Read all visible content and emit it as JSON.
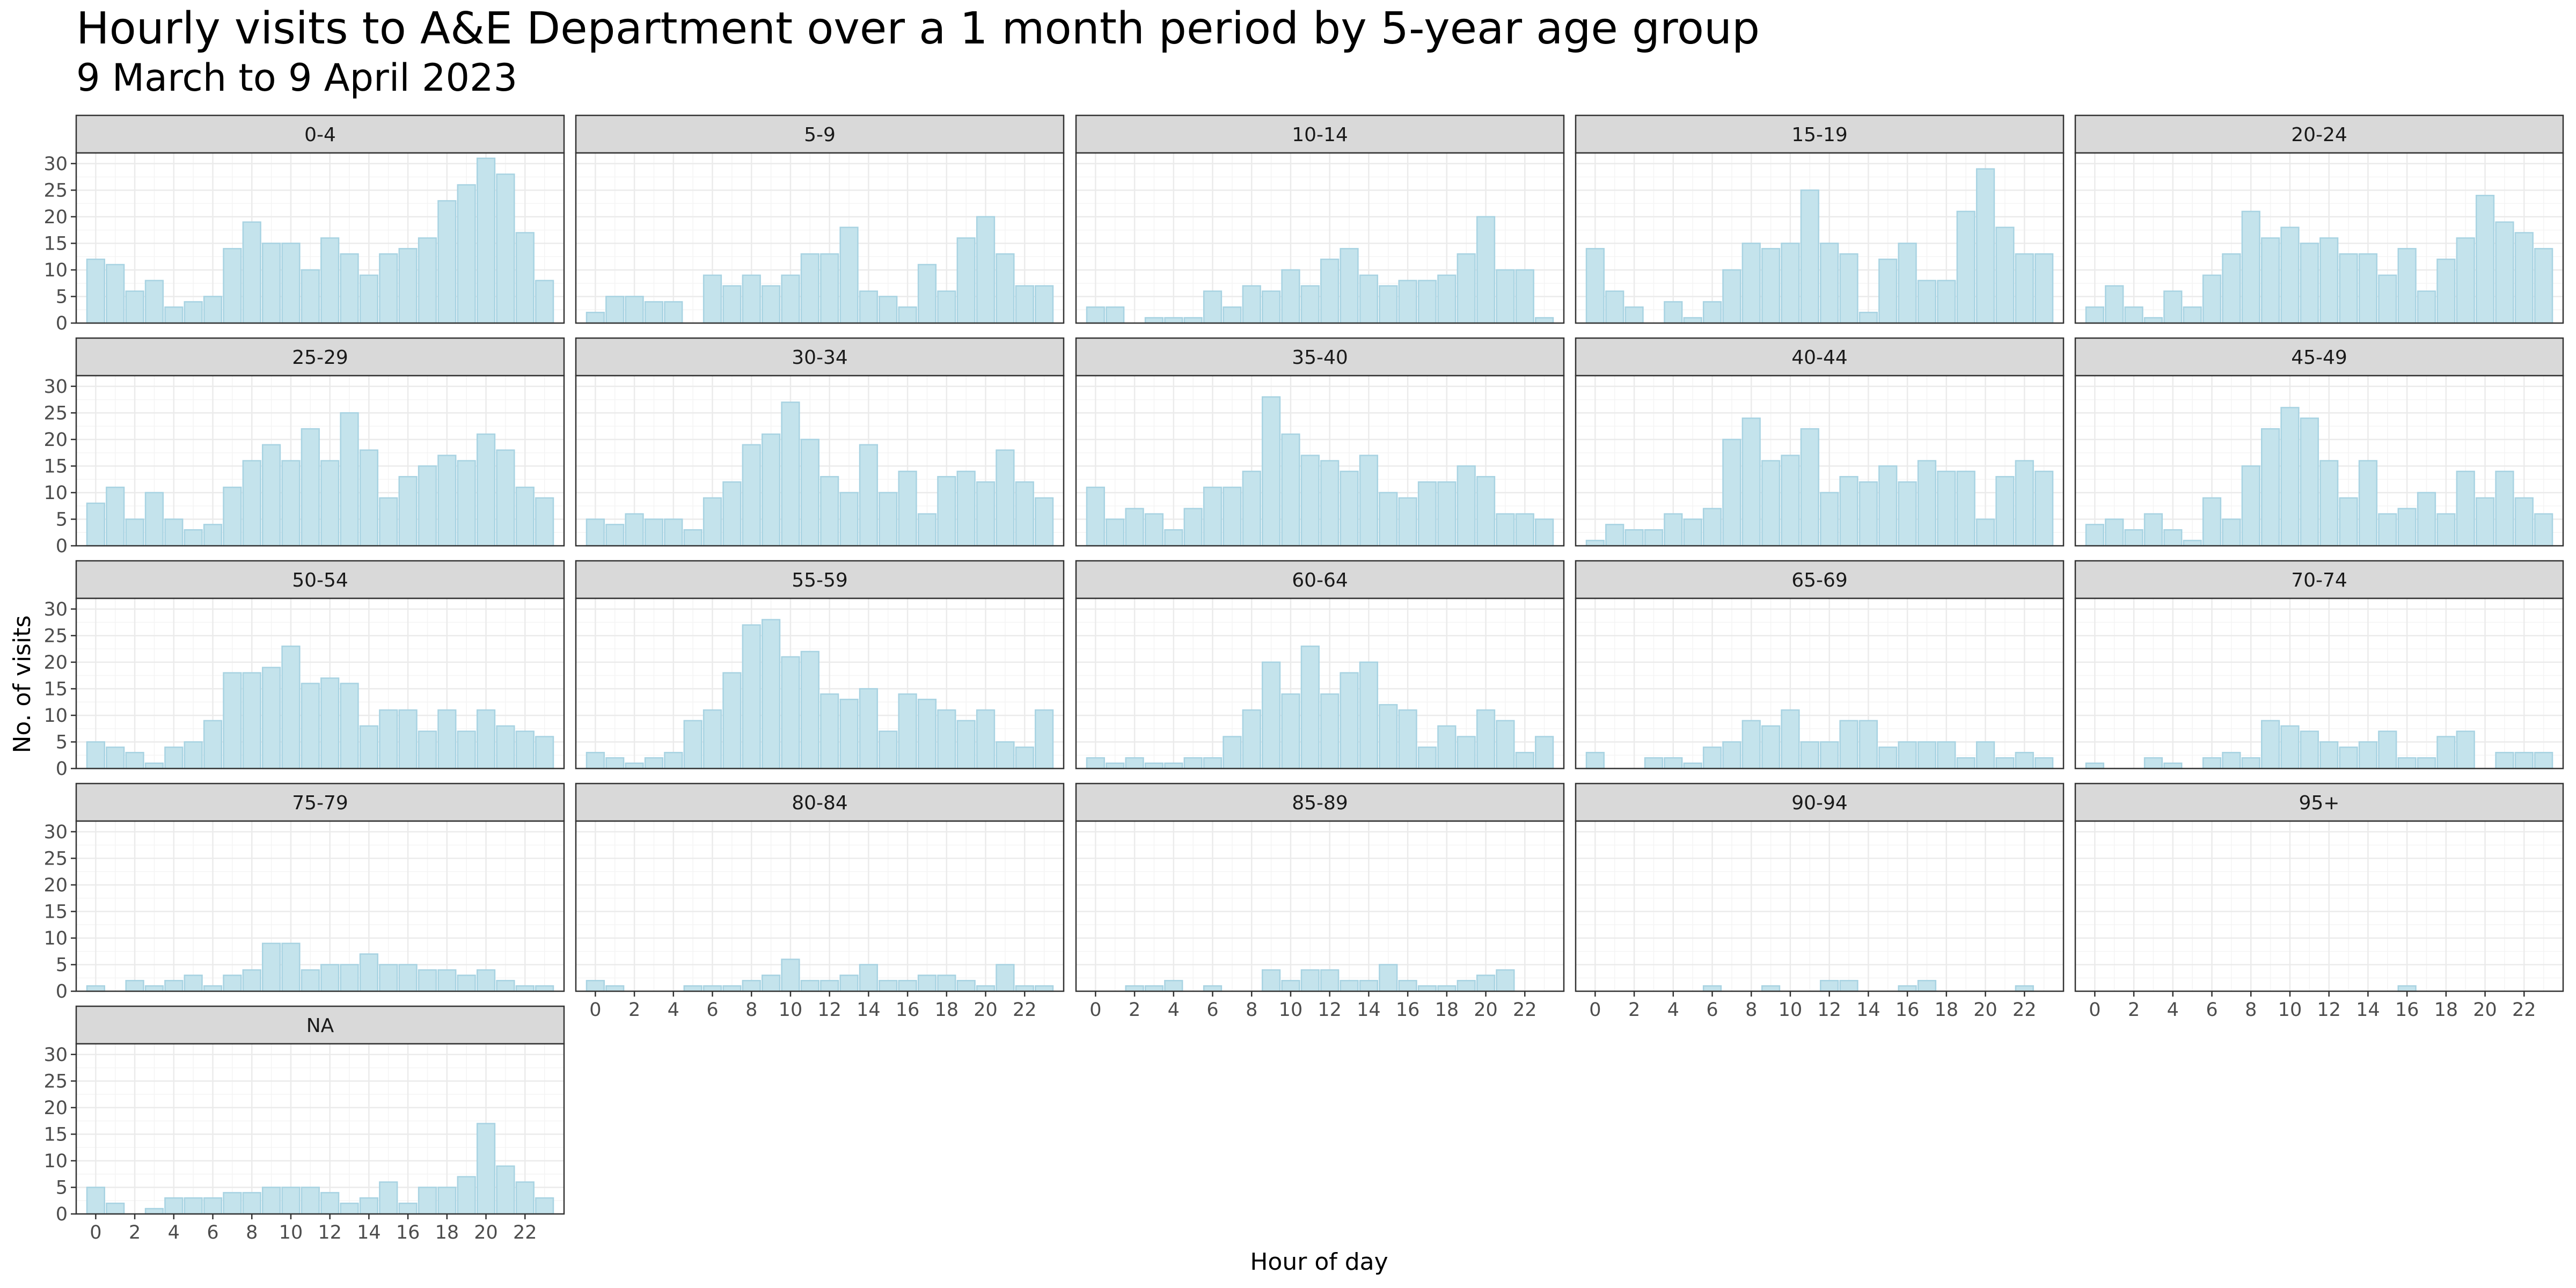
{
  "chart_data": {
    "type": "bar",
    "title": "Hourly visits to A&E Department over a 1 month period by 5-year age group",
    "subtitle": "9 March to 9 April 2023",
    "xlabel": "Hour of day",
    "ylabel": "No. of visits",
    "x_ticks": [
      0,
      2,
      4,
      6,
      8,
      10,
      12,
      14,
      16,
      18,
      20,
      22
    ],
    "y_ticks": [
      0,
      5,
      10,
      15,
      20,
      25,
      30
    ],
    "ylim": [
      0,
      32
    ],
    "xlim": [
      -1,
      24
    ],
    "grid": true,
    "colors": {
      "bar_fill": "#c4e3ec",
      "bar_stroke": "#a8d3e2",
      "strip": "#d9d9d9",
      "grid_major": "#ebebeb",
      "grid_minor": "#f4f4f4",
      "panel_border": "#333333"
    },
    "x": [
      0,
      1,
      2,
      3,
      4,
      5,
      6,
      7,
      8,
      9,
      10,
      11,
      12,
      13,
      14,
      15,
      16,
      17,
      18,
      19,
      20,
      21,
      22,
      23
    ],
    "panels": [
      {
        "name": "0-4",
        "values": [
          12,
          11,
          6,
          8,
          3,
          4,
          5,
          14,
          19,
          15,
          15,
          10,
          16,
          13,
          9,
          13,
          14,
          16,
          23,
          26,
          31,
          28,
          17,
          8
        ]
      },
      {
        "name": "5-9",
        "values": [
          2,
          5,
          5,
          4,
          4,
          0,
          9,
          7,
          9,
          7,
          9,
          13,
          13,
          18,
          6,
          5,
          3,
          11,
          6,
          16,
          20,
          13,
          7,
          7
        ]
      },
      {
        "name": "10-14",
        "values": [
          3,
          3,
          0,
          1,
          1,
          1,
          6,
          3,
          7,
          6,
          10,
          7,
          12,
          14,
          9,
          7,
          8,
          8,
          9,
          13,
          20,
          10,
          10,
          1
        ]
      },
      {
        "name": "15-19",
        "values": [
          14,
          6,
          3,
          0,
          4,
          1,
          4,
          10,
          15,
          14,
          15,
          25,
          15,
          13,
          2,
          12,
          15,
          8,
          8,
          21,
          29,
          18,
          13,
          13
        ]
      },
      {
        "name": "20-24",
        "values": [
          3,
          7,
          3,
          1,
          6,
          3,
          9,
          13,
          21,
          16,
          18,
          15,
          16,
          13,
          13,
          9,
          14,
          6,
          12,
          16,
          24,
          19,
          17,
          14
        ]
      },
      {
        "name": "25-29",
        "values": [
          8,
          11,
          5,
          10,
          5,
          3,
          4,
          11,
          16,
          19,
          16,
          22,
          16,
          25,
          18,
          9,
          13,
          15,
          17,
          16,
          21,
          18,
          11,
          9
        ]
      },
      {
        "name": "30-34",
        "values": [
          5,
          4,
          6,
          5,
          5,
          3,
          9,
          12,
          19,
          21,
          27,
          20,
          13,
          10,
          19,
          10,
          14,
          6,
          13,
          14,
          12,
          18,
          12,
          9
        ]
      },
      {
        "name": "35-40",
        "values": [
          11,
          5,
          7,
          6,
          3,
          7,
          11,
          11,
          14,
          28,
          21,
          17,
          16,
          14,
          17,
          10,
          9,
          12,
          12,
          15,
          13,
          6,
          6,
          5
        ]
      },
      {
        "name": "40-44",
        "values": [
          1,
          4,
          3,
          3,
          6,
          5,
          7,
          20,
          24,
          16,
          17,
          22,
          10,
          13,
          12,
          15,
          12,
          16,
          14,
          14,
          5,
          13,
          16,
          14
        ]
      },
      {
        "name": "45-49",
        "values": [
          4,
          5,
          3,
          6,
          3,
          1,
          9,
          5,
          15,
          22,
          26,
          24,
          16,
          9,
          16,
          6,
          7,
          10,
          6,
          14,
          9,
          14,
          9,
          6
        ]
      },
      {
        "name": "50-54",
        "values": [
          5,
          4,
          3,
          1,
          4,
          5,
          9,
          18,
          18,
          19,
          23,
          16,
          17,
          16,
          8,
          11,
          11,
          7,
          11,
          7,
          11,
          8,
          7,
          6
        ]
      },
      {
        "name": "55-59",
        "values": [
          3,
          2,
          1,
          2,
          3,
          9,
          11,
          18,
          27,
          28,
          21,
          22,
          14,
          13,
          15,
          7,
          14,
          13,
          11,
          9,
          11,
          5,
          4,
          11
        ]
      },
      {
        "name": "60-64",
        "values": [
          2,
          1,
          2,
          1,
          1,
          2,
          2,
          6,
          11,
          20,
          14,
          23,
          14,
          18,
          20,
          12,
          11,
          4,
          8,
          6,
          11,
          9,
          3,
          6
        ]
      },
      {
        "name": "65-69",
        "values": [
          3,
          0,
          0,
          2,
          2,
          1,
          4,
          5,
          9,
          8,
          11,
          5,
          5,
          9,
          9,
          4,
          5,
          5,
          5,
          2,
          5,
          2,
          3,
          2
        ]
      },
      {
        "name": "70-74",
        "values": [
          1,
          0,
          0,
          2,
          1,
          0,
          2,
          3,
          2,
          9,
          8,
          7,
          5,
          4,
          5,
          7,
          2,
          2,
          6,
          7,
          0,
          3,
          3,
          3
        ]
      },
      {
        "name": "75-79",
        "values": [
          1,
          0,
          2,
          1,
          2,
          3,
          1,
          3,
          4,
          9,
          9,
          4,
          5,
          5,
          7,
          5,
          5,
          4,
          4,
          3,
          4,
          2,
          1,
          1
        ]
      },
      {
        "name": "80-84",
        "values": [
          2,
          1,
          0,
          0,
          0,
          1,
          1,
          1,
          2,
          3,
          6,
          2,
          2,
          3,
          5,
          2,
          2,
          3,
          3,
          2,
          1,
          5,
          1,
          1
        ]
      },
      {
        "name": "85-89",
        "values": [
          0,
          0,
          1,
          1,
          2,
          0,
          1,
          0,
          0,
          4,
          2,
          4,
          4,
          2,
          2,
          5,
          2,
          1,
          1,
          2,
          3,
          4,
          0,
          0
        ]
      },
      {
        "name": "90-94",
        "values": [
          0,
          0,
          0,
          0,
          0,
          0,
          1,
          0,
          0,
          1,
          0,
          0,
          2,
          2,
          0,
          0,
          1,
          2,
          0,
          0,
          0,
          0,
          1,
          0
        ]
      },
      {
        "name": "95+",
        "values": [
          0,
          0,
          0,
          0,
          0,
          0,
          0,
          0,
          0,
          0,
          0,
          0,
          0,
          0,
          0,
          0,
          1,
          0,
          0,
          0,
          0,
          0,
          0,
          0
        ]
      },
      {
        "name": "NA",
        "values": [
          5,
          2,
          0,
          1,
          3,
          3,
          3,
          4,
          4,
          5,
          5,
          5,
          4,
          2,
          3,
          6,
          2,
          5,
          5,
          7,
          17,
          9,
          6,
          3
        ]
      }
    ]
  }
}
